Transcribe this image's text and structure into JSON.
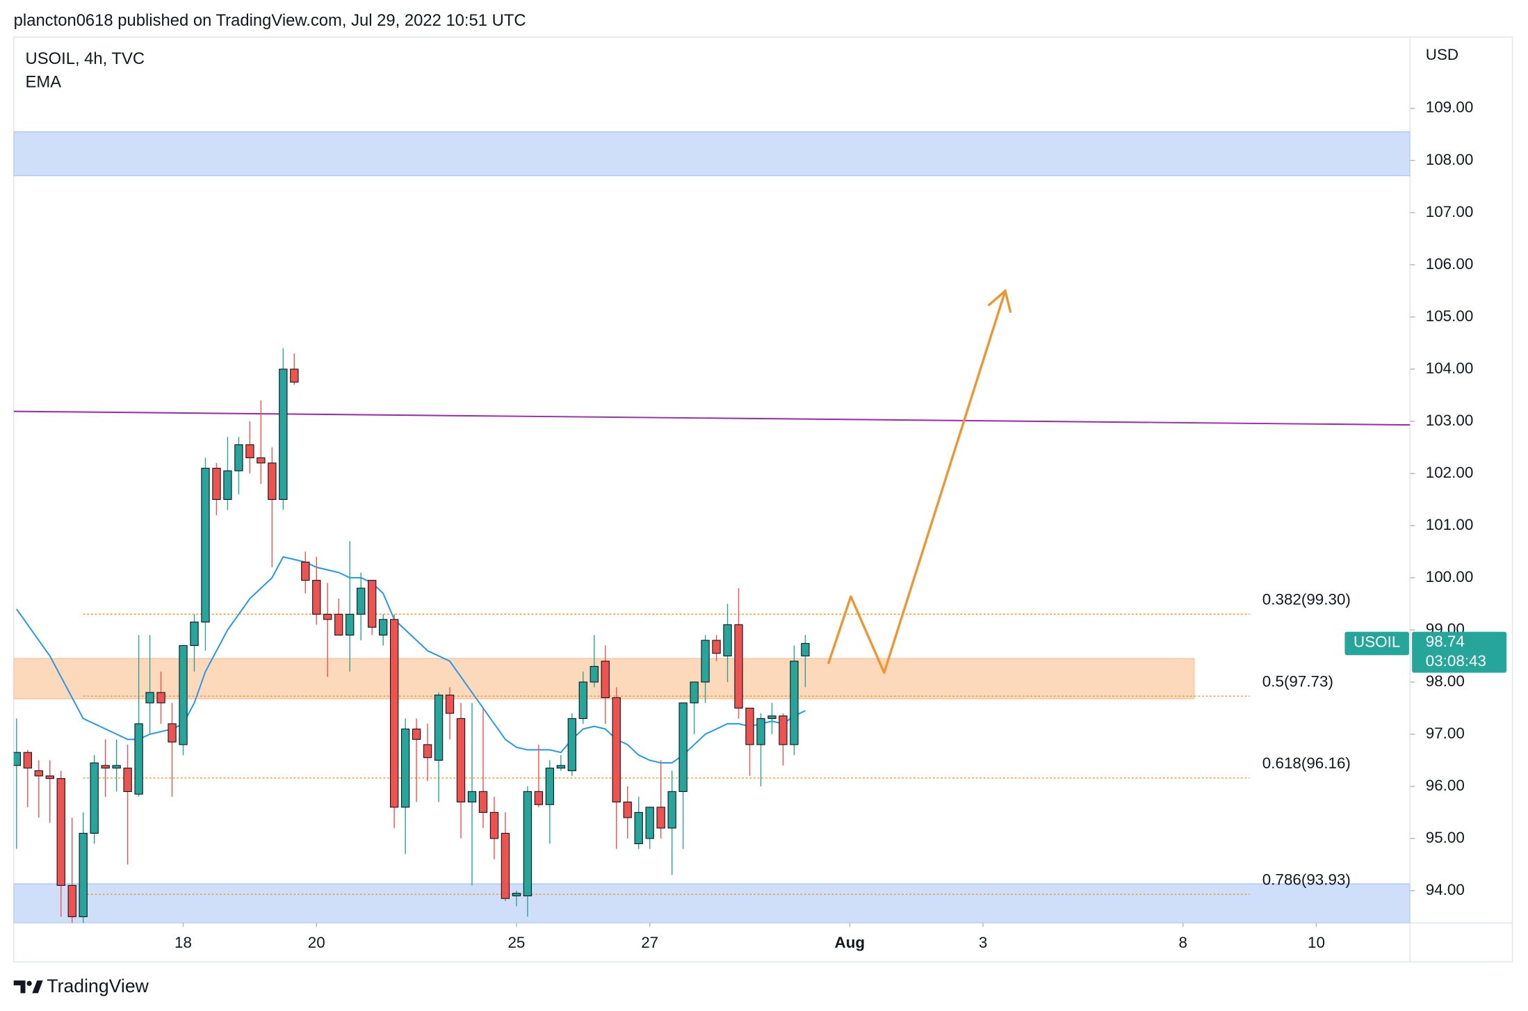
{
  "chart_data": {
    "type": "candlestick",
    "header": "plancton0618 published on TradingView.com, Jul 29, 2022 10:51 UTC",
    "legend_title": "USOIL, 4h, TVC",
    "indicator": "EMA",
    "currency": "USD",
    "footer": "TradingView",
    "up_color": "#26a69a",
    "down_color": "#ef5350",
    "ema_color": "#2196f3",
    "xlim": [
      -0.26,
      125.44
    ],
    "ylim": [
      93.38,
      110.33
    ],
    "yticks": [
      {
        "value": 109,
        "label": "109.00"
      },
      {
        "value": 108,
        "label": "108.00"
      },
      {
        "value": 107,
        "label": "107.00"
      },
      {
        "value": 106,
        "label": "106.00"
      },
      {
        "value": 105,
        "label": "105.00"
      },
      {
        "value": 104,
        "label": "104.00"
      },
      {
        "value": 103,
        "label": "103.00"
      },
      {
        "value": 102,
        "label": "102.00"
      },
      {
        "value": 101,
        "label": "101.00"
      },
      {
        "value": 100,
        "label": "100.00"
      },
      {
        "value": 99,
        "label": "99.00"
      },
      {
        "value": 98,
        "label": "98.00"
      },
      {
        "value": 97,
        "label": "97.00"
      },
      {
        "value": 96,
        "label": "96.00"
      },
      {
        "value": 95,
        "label": "95.00"
      },
      {
        "value": 94,
        "label": "94.00"
      }
    ],
    "xticks": [
      {
        "value": 15,
        "label": "18"
      },
      {
        "value": 27,
        "label": "20"
      },
      {
        "value": 45,
        "label": "25"
      },
      {
        "value": 57,
        "label": "27"
      },
      {
        "value": 75,
        "label": "Aug"
      },
      {
        "value": 87,
        "label": "3"
      },
      {
        "value": 105,
        "label": "8"
      },
      {
        "value": 117,
        "label": "10"
      }
    ],
    "grid": false,
    "open": [
      96.4,
      96.65,
      96.3,
      96.2,
      96.15,
      94.1,
      93.5,
      95.1,
      96.4,
      96.35,
      96.35,
      95.85,
      97.6,
      97.8,
      97.2,
      96.8,
      98.7,
      99.15,
      102.1,
      101.5,
      102.05,
      102.55,
      102.3,
      102.2,
      101.5,
      104.0,
      100.3,
      99.95,
      99.3,
      99.3,
      98.9,
      99.3,
      99.95,
      98.9,
      99.2,
      95.6,
      97.1,
      96.8,
      96.5,
      97.75,
      97.3,
      95.7,
      95.9,
      95.5,
      95.1,
      93.9,
      93.9,
      95.9,
      95.65,
      96.35,
      96.3,
      97.3,
      98.0,
      98.4,
      97.7,
      95.7,
      94.9,
      95.0,
      95.6,
      95.2,
      95.9,
      97.6,
      98.0,
      98.8,
      98.5,
      99.1,
      97.5,
      96.8,
      97.3,
      97.35,
      96.8,
      98.5
    ],
    "high": [
      97.3,
      96.7,
      96.5,
      96.5,
      96.3,
      95.4,
      95.5,
      96.6,
      96.9,
      96.9,
      96.8,
      98.9,
      98.9,
      98.2,
      97.6,
      98.7,
      99.3,
      102.3,
      102.2,
      102.7,
      102.7,
      103.0,
      103.4,
      102.5,
      104.4,
      104.3,
      100.5,
      100.4,
      99.9,
      99.6,
      100.7,
      100.1,
      99.95,
      99.3,
      99.3,
      97.3,
      97.3,
      97.2,
      97.8,
      97.9,
      97.6,
      97.6,
      97.5,
      95.8,
      95.5,
      94.0,
      96.0,
      96.8,
      96.5,
      96.6,
      97.4,
      98.2,
      98.9,
      98.7,
      97.9,
      96.0,
      95.8,
      95.6,
      96.5,
      96.3,
      97.6,
      98.0,
      98.9,
      98.9,
      99.5,
      99.8,
      97.5,
      97.4,
      97.6,
      97.4,
      98.7,
      98.9
    ],
    "low": [
      94.8,
      95.6,
      95.4,
      95.3,
      93.5,
      93.2,
      93.2,
      94.9,
      95.8,
      95.9,
      94.5,
      95.8,
      97.0,
      97.2,
      95.8,
      96.6,
      98.2,
      98.6,
      101.2,
      101.3,
      101.6,
      102.0,
      101.8,
      100.2,
      101.3,
      103.7,
      99.7,
      99.1,
      98.1,
      98.9,
      98.2,
      98.8,
      98.9,
      98.7,
      95.2,
      94.7,
      95.7,
      96.1,
      95.7,
      96.9,
      95.0,
      94.1,
      95.2,
      94.6,
      93.8,
      93.7,
      93.5,
      95.6,
      94.9,
      96.3,
      96.2,
      97.2,
      97.9,
      97.2,
      94.8,
      95.0,
      94.8,
      94.8,
      95.0,
      94.3,
      94.8,
      97.0,
      97.6,
      98.4,
      98.0,
      97.3,
      96.2,
      96.0,
      97.0,
      96.4,
      96.6,
      97.9
    ],
    "close": [
      96.65,
      96.35,
      96.2,
      96.15,
      94.1,
      93.5,
      95.1,
      96.45,
      96.35,
      96.4,
      95.9,
      97.2,
      97.8,
      97.6,
      96.85,
      98.7,
      99.15,
      102.1,
      101.5,
      102.05,
      102.55,
      102.3,
      102.2,
      101.5,
      104.0,
      103.75,
      99.95,
      99.3,
      99.2,
      98.9,
      99.3,
      99.8,
      99.05,
      99.2,
      95.6,
      97.1,
      96.9,
      96.55,
      97.75,
      97.4,
      95.7,
      95.9,
      95.5,
      95.0,
      93.85,
      93.95,
      95.9,
      95.65,
      96.35,
      96.4,
      97.3,
      98.0,
      98.3,
      97.7,
      95.7,
      95.4,
      95.5,
      95.6,
      95.2,
      95.9,
      97.6,
      98.0,
      98.8,
      98.55,
      99.1,
      97.5,
      96.8,
      97.3,
      97.35,
      96.8,
      98.4,
      98.74
    ],
    "ema": [
      99.4,
      99.1,
      98.8,
      98.5,
      98.1,
      97.7,
      97.3,
      97.2,
      97.1,
      97.0,
      96.9,
      96.9,
      97.0,
      97.05,
      97.1,
      97.2,
      97.6,
      98.2,
      98.6,
      99.0,
      99.3,
      99.6,
      99.8,
      100.0,
      100.4,
      100.35,
      100.3,
      100.2,
      100.15,
      100.1,
      100.0,
      100.0,
      99.9,
      99.7,
      99.2,
      99.0,
      98.8,
      98.6,
      98.5,
      98.4,
      98.1,
      97.8,
      97.5,
      97.2,
      96.9,
      96.75,
      96.7,
      96.7,
      96.7,
      96.65,
      96.9,
      97.1,
      97.15,
      97.1,
      96.9,
      96.8,
      96.6,
      96.5,
      96.45,
      96.45,
      96.6,
      96.8,
      97.0,
      97.1,
      97.2,
      97.2,
      97.15,
      97.2,
      97.25,
      97.2,
      97.35,
      97.45
    ],
    "zones": [
      {
        "from": 107.71,
        "to": 108.55,
        "x_from": -0.26,
        "x_to": 125.44,
        "color": "#cfdff9",
        "border": "#a9c7f2"
      },
      {
        "from": 97.68,
        "to": 98.45,
        "x_from": -0.26,
        "x_to": 106,
        "color": "#fcd9bb",
        "border": "#f7c39a"
      },
      {
        "from": 93.38,
        "to": 94.13,
        "x_from": -0.26,
        "x_to": 125.44,
        "color": "#cfdff9",
        "border": "#a9c7f2"
      }
    ],
    "trendline": {
      "color": "#9c27b0",
      "points": [
        [
          -0.26,
          103.19
        ],
        [
          125.44,
          102.93
        ]
      ]
    },
    "fib_color": "#f0942a",
    "fib_x": [
      6,
      111
    ],
    "fib_levels": [
      {
        "label": "0.382(99.30)",
        "value": 99.3
      },
      {
        "label": "0.5(97.73)",
        "value": 97.73
      },
      {
        "label": "0.618(96.16)",
        "value": 96.16
      },
      {
        "label": "0.786(93.93)",
        "value": 93.93
      }
    ],
    "projection": {
      "color": "#f0952e",
      "points": [
        [
          73.07,
          98.35
        ],
        [
          75.1,
          99.64
        ],
        [
          78.1,
          98.18
        ],
        [
          89.0,
          105.5
        ]
      ]
    },
    "last_price": {
      "symbol": "USOIL",
      "value": 98.74,
      "countdown": "03:08:43",
      "color": "#26a69a"
    }
  }
}
